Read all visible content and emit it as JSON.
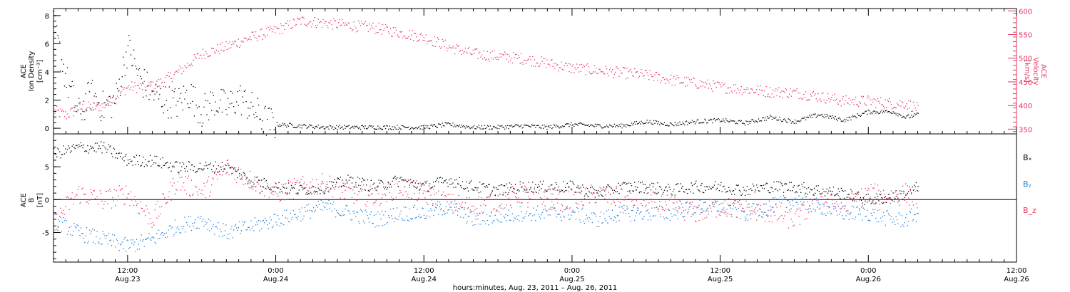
{
  "colors": {
    "black": "#000000",
    "pink": "#e8345f",
    "blue": "#1e7fd8"
  },
  "xaxis": {
    "title": "hours:minutes, Aug. 23, 2011 – Aug. 26, 2011",
    "ticks": [
      {
        "t": 12,
        "time": "12:00",
        "date": "Aug.23"
      },
      {
        "t": 24,
        "time": "0:00",
        "date": "Aug.24"
      },
      {
        "t": 36,
        "time": "12:00",
        "date": "Aug.24"
      },
      {
        "t": 48,
        "time": "0:00",
        "date": "Aug.25"
      },
      {
        "t": 60,
        "time": "12:00",
        "date": "Aug.25"
      },
      {
        "t": 72,
        "time": "0:00",
        "date": "Aug.26"
      },
      {
        "t": 84,
        "time": "12:00",
        "date": "Aug.26"
      }
    ]
  },
  "top_panel": {
    "left_label": [
      "ACE",
      "Ion Density",
      "[cm⁻³]"
    ],
    "right_label": [
      "ACE",
      "Velocity",
      "[km/s]"
    ],
    "left_ticks": [
      "0",
      "2",
      "4",
      "6",
      "8"
    ],
    "right_ticks": [
      "350",
      "400",
      "450",
      "500",
      "550",
      "600"
    ]
  },
  "bottom_panel": {
    "left_label": [
      "ACE",
      "B",
      "[nT]"
    ],
    "left_ticks": [
      "-5",
      "0",
      "5"
    ],
    "legend": [
      {
        "text": "Bₓ",
        "color": "#000000"
      },
      {
        "text": "Bᵧ",
        "color": "#1e7fd8"
      },
      {
        "text": "B_z",
        "color": "#e8345f"
      }
    ]
  },
  "chart_data": [
    {
      "type": "scatter",
      "title": "",
      "xlabel": "hours:minutes, Aug. 23, 2011 – Aug. 26, 2011",
      "x_unit": "hours since Aug 22 2011 00:00",
      "xlim": [
        6,
        84
      ],
      "series": [
        {
          "axis": "left",
          "color": "#000000",
          "ylabel": "ACE Ion Density [cm^-3]",
          "ylim": [
            -0.4,
            8.5
          ],
          "points": [
            [
              6,
              7.2
            ],
            [
              7,
              3.5
            ],
            [
              8,
              1.0
            ],
            [
              9,
              2.5
            ],
            [
              10,
              1.5
            ],
            [
              11,
              2.0
            ],
            [
              12,
              5.8
            ],
            [
              13,
              3.5
            ],
            [
              14,
              2.5
            ],
            [
              15,
              2.0
            ],
            [
              16,
              1.8
            ],
            [
              17,
              2.5
            ],
            [
              18,
              1.2
            ],
            [
              19,
              2.0
            ],
            [
              20,
              1.5
            ],
            [
              21,
              2.2
            ],
            [
              22,
              1.5
            ],
            [
              23,
              0.6
            ],
            [
              24,
              0.3
            ],
            [
              26,
              0.2
            ],
            [
              28,
              0.1
            ],
            [
              30,
              0.1
            ],
            [
              32,
              0.1
            ],
            [
              34,
              0.1
            ],
            [
              36,
              0.1
            ],
            [
              38,
              0.3
            ],
            [
              40,
              0.1
            ],
            [
              42,
              0.1
            ],
            [
              44,
              0.2
            ],
            [
              46,
              0.1
            ],
            [
              48,
              0.3
            ],
            [
              50,
              0.2
            ],
            [
              52,
              0.2
            ],
            [
              54,
              0.5
            ],
            [
              56,
              0.3
            ],
            [
              58,
              0.5
            ],
            [
              60,
              0.6
            ],
            [
              62,
              0.4
            ],
            [
              64,
              0.8
            ],
            [
              66,
              0.5
            ],
            [
              68,
              1.0
            ],
            [
              70,
              0.6
            ],
            [
              72,
              1.2
            ],
            [
              74,
              1.2
            ],
            [
              75,
              0.8
            ],
            [
              76,
              1.0
            ]
          ]
        },
        {
          "axis": "right",
          "color": "#e8345f",
          "ylabel": "ACE Velocity [km/s]",
          "ylim": [
            340,
            605
          ],
          "points": [
            [
              6,
              390
            ],
            [
              7,
              380
            ],
            [
              8,
              395
            ],
            [
              10,
              400
            ],
            [
              12,
              440
            ],
            [
              14,
              440
            ],
            [
              16,
              470
            ],
            [
              18,
              510
            ],
            [
              20,
              525
            ],
            [
              22,
              545
            ],
            [
              24,
              560
            ],
            [
              26,
              580
            ],
            [
              28,
              575
            ],
            [
              30,
              570
            ],
            [
              32,
              565
            ],
            [
              34,
              555
            ],
            [
              36,
              545
            ],
            [
              38,
              525
            ],
            [
              40,
              510
            ],
            [
              42,
              505
            ],
            [
              44,
              500
            ],
            [
              46,
              490
            ],
            [
              48,
              480
            ],
            [
              50,
              475
            ],
            [
              52,
              470
            ],
            [
              54,
              465
            ],
            [
              56,
              455
            ],
            [
              58,
              448
            ],
            [
              60,
              440
            ],
            [
              62,
              435
            ],
            [
              64,
              430
            ],
            [
              66,
              428
            ],
            [
              68,
              420
            ],
            [
              70,
              410
            ],
            [
              72,
              410
            ],
            [
              74,
              405
            ],
            [
              75,
              405
            ],
            [
              76,
              395
            ]
          ]
        }
      ]
    },
    {
      "type": "scatter",
      "title": "",
      "xlabel": "hours:minutes, Aug. 23, 2011 – Aug. 26, 2011",
      "ylabel": "ACE B [nT]",
      "ylim": [
        -9.5,
        10
      ],
      "legend_position": "right",
      "series": [
        {
          "name": "Bx",
          "color": "#000000",
          "points": [
            [
              6,
              7
            ],
            [
              8,
              8
            ],
            [
              10,
              8
            ],
            [
              12,
              6
            ],
            [
              14,
              6
            ],
            [
              16,
              5
            ],
            [
              18,
              5
            ],
            [
              20,
              5
            ],
            [
              22,
              3
            ],
            [
              24,
              2
            ],
            [
              26,
              1.5
            ],
            [
              28,
              2
            ],
            [
              30,
              3
            ],
            [
              32,
              2
            ],
            [
              34,
              3
            ],
            [
              36,
              2
            ],
            [
              38,
              3
            ],
            [
              40,
              2
            ],
            [
              42,
              1.5
            ],
            [
              44,
              2
            ],
            [
              46,
              2
            ],
            [
              48,
              2
            ],
            [
              50,
              1
            ],
            [
              52,
              2
            ],
            [
              54,
              2
            ],
            [
              56,
              1.5
            ],
            [
              58,
              2
            ],
            [
              60,
              2
            ],
            [
              62,
              1.5
            ],
            [
              64,
              2
            ],
            [
              66,
              2
            ],
            [
              68,
              1.5
            ],
            [
              70,
              1
            ],
            [
              72,
              0
            ],
            [
              74,
              0.5
            ],
            [
              75,
              1
            ],
            [
              76,
              2
            ]
          ]
        },
        {
          "name": "By",
          "color": "#1e7fd8",
          "points": [
            [
              6,
              -3
            ],
            [
              8,
              -5
            ],
            [
              10,
              -6
            ],
            [
              12,
              -7
            ],
            [
              14,
              -6
            ],
            [
              16,
              -4
            ],
            [
              18,
              -3
            ],
            [
              20,
              -5
            ],
            [
              22,
              -4
            ],
            [
              24,
              -3
            ],
            [
              26,
              -2
            ],
            [
              28,
              -1
            ],
            [
              30,
              -2
            ],
            [
              32,
              -3
            ],
            [
              34,
              -2
            ],
            [
              36,
              -2
            ],
            [
              38,
              -1
            ],
            [
              40,
              -3
            ],
            [
              42,
              -2.5
            ],
            [
              44,
              -2
            ],
            [
              46,
              -2
            ],
            [
              48,
              -2
            ],
            [
              50,
              -3
            ],
            [
              52,
              -2
            ],
            [
              54,
              -2
            ],
            [
              56,
              -2
            ],
            [
              58,
              -1
            ],
            [
              60,
              -1
            ],
            [
              62,
              -2
            ],
            [
              64,
              -1
            ],
            [
              66,
              0
            ],
            [
              68,
              -1
            ],
            [
              70,
              -2
            ],
            [
              72,
              -2
            ],
            [
              74,
              -3
            ],
            [
              75,
              -3
            ],
            [
              76,
              -2
            ]
          ]
        },
        {
          "name": "Bz",
          "color": "#e8345f",
          "points": [
            [
              6,
              -4
            ],
            [
              7,
              -1
            ],
            [
              8,
              1
            ],
            [
              10,
              0
            ],
            [
              12,
              1
            ],
            [
              14,
              -3
            ],
            [
              16,
              3
            ],
            [
              18,
              1
            ],
            [
              20,
              5
            ],
            [
              22,
              3
            ],
            [
              24,
              1
            ],
            [
              26,
              2
            ],
            [
              28,
              2.5
            ],
            [
              30,
              1
            ],
            [
              32,
              0.5
            ],
            [
              34,
              2
            ],
            [
              36,
              1
            ],
            [
              38,
              -0.5
            ],
            [
              40,
              -1
            ],
            [
              42,
              0
            ],
            [
              44,
              1
            ],
            [
              46,
              0
            ],
            [
              48,
              0
            ],
            [
              50,
              1
            ],
            [
              52,
              0
            ],
            [
              54,
              0
            ],
            [
              56,
              -1
            ],
            [
              58,
              -2
            ],
            [
              60,
              -1
            ],
            [
              62,
              -1.5
            ],
            [
              64,
              -2
            ],
            [
              66,
              -3
            ],
            [
              68,
              0
            ],
            [
              70,
              -1
            ],
            [
              72,
              1
            ],
            [
              74,
              0.5
            ],
            [
              75,
              1
            ],
            [
              76,
              0
            ]
          ]
        }
      ]
    }
  ]
}
